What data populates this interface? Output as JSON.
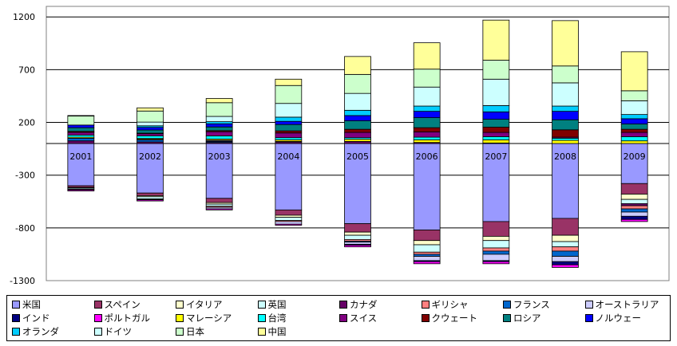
{
  "chart_data": {
    "type": "bar",
    "stacked": true,
    "title": "",
    "xlabel": "",
    "ylabel": "",
    "ylim": [
      -1300,
      1300
    ],
    "yticks": [
      1200,
      700,
      200,
      -300,
      -800,
      -1300
    ],
    "grid": true,
    "legend_position": "bottom",
    "categories": [
      "2001",
      "2002",
      "2003",
      "2004",
      "2005",
      "2006",
      "2007",
      "2008",
      "2009"
    ],
    "series": [
      {
        "name": "米国",
        "color": "#9999FF",
        "values": [
          -400,
          -470,
          -520,
          -630,
          -760,
          -820,
          -740,
          -710,
          -380
        ]
      },
      {
        "name": "スペイン",
        "color": "#993366",
        "values": [
          -15,
          -25,
          -40,
          -50,
          -80,
          -100,
          -140,
          -160,
          -100
        ]
      },
      {
        "name": "イタリア",
        "color": "#FFFFCC",
        "values": [
          -5,
          -10,
          -15,
          -20,
          -30,
          -40,
          -40,
          -60,
          -50
        ]
      },
      {
        "name": "英国",
        "color": "#CCFFFF",
        "values": [
          -10,
          -20,
          -20,
          -30,
          -40,
          -70,
          -70,
          -50,
          -40
        ]
      },
      {
        "name": "カナダ",
        "color": "#660066",
        "values": [
          25,
          15,
          10,
          15,
          20,
          10,
          5,
          0,
          -20
        ]
      },
      {
        "name": "ギリシャ",
        "color": "#FF8080",
        "values": [
          -5,
          -5,
          -10,
          -10,
          -15,
          -20,
          -30,
          -40,
          -30
        ]
      },
      {
        "name": "フランス",
        "color": "#0066CC",
        "values": [
          25,
          20,
          10,
          5,
          -10,
          -20,
          -30,
          -50,
          -30
        ]
      },
      {
        "name": "オーストラリア",
        "color": "#CCCCFF",
        "values": [
          -5,
          -5,
          -15,
          -25,
          -20,
          -40,
          -60,
          -50,
          -40
        ]
      },
      {
        "name": "インド",
        "color": "#000080",
        "values": [
          0,
          5,
          10,
          0,
          -10,
          -10,
          -10,
          -30,
          -30
        ]
      },
      {
        "name": "ポルトガル",
        "color": "#FF00FF",
        "values": [
          -10,
          -10,
          -10,
          -10,
          -15,
          -20,
          -20,
          -25,
          -20
        ]
      },
      {
        "name": "マレーシア",
        "color": "#FFFF00",
        "values": [
          10,
          8,
          12,
          15,
          20,
          25,
          30,
          30,
          25
        ]
      },
      {
        "name": "台湾",
        "color": "#00FFFF",
        "values": [
          20,
          25,
          30,
          20,
          15,
          25,
          30,
          20,
          40
        ]
      },
      {
        "name": "スイス",
        "color": "#800080",
        "values": [
          25,
          20,
          40,
          45,
          50,
          50,
          40,
          10,
          40
        ]
      },
      {
        "name": "クウェート",
        "color": "#800000",
        "values": [
          10,
          5,
          10,
          20,
          30,
          40,
          50,
          70,
          30
        ]
      },
      {
        "name": "ロシア",
        "color": "#008080",
        "values": [
          35,
          30,
          35,
          60,
          80,
          95,
          75,
          95,
          50
        ]
      },
      {
        "name": "ノルウェー",
        "color": "#0000FF",
        "values": [
          25,
          25,
          30,
          30,
          50,
          60,
          70,
          80,
          50
        ]
      },
      {
        "name": "オランダ",
        "color": "#00CCFF",
        "values": [
          0,
          15,
          20,
          40,
          50,
          50,
          60,
          50,
          40
        ]
      },
      {
        "name": "ドイツ",
        "color": "#CCFFFF",
        "values": [
          0,
          35,
          50,
          130,
          160,
          180,
          250,
          220,
          130
        ]
      },
      {
        "name": "日本",
        "color": "#CCFFCC",
        "values": [
          85,
          105,
          130,
          170,
          180,
          170,
          180,
          160,
          95
        ]
      },
      {
        "name": "中国",
        "color": "#FFFF99",
        "values": [
          5,
          30,
          40,
          60,
          170,
          250,
          380,
          430,
          370
        ]
      }
    ]
  }
}
